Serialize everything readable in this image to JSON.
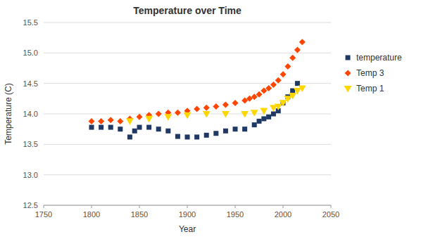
{
  "chart_data": {
    "type": "scatter",
    "title": "Temperature over Time",
    "x_label": "Year",
    "y_label": "Temperature (C)",
    "xlim": [
      1750,
      2050
    ],
    "ylim": [
      12.5,
      15.5
    ],
    "xticks": [
      1750,
      1800,
      1850,
      1900,
      1950,
      2000,
      2050
    ],
    "yticks": [
      12.5,
      {
        "value": 13.0,
        "label": "13.0"
      },
      13.5,
      {
        "value": 14.0,
        "label": "14.0"
      },
      14.5,
      {
        "value": 15.0,
        "label": "15.0"
      },
      15.5
    ],
    "grid": true,
    "legend": "right",
    "series": [
      {
        "name": "temperature",
        "color": "#1F3864",
        "marker": "square",
        "x": [
          1800,
          1810,
          1820,
          1830,
          1840,
          1845,
          1850,
          1860,
          1870,
          1880,
          1890,
          1900,
          1910,
          1920,
          1930,
          1940,
          1950,
          1960,
          1970,
          1975,
          1980,
          1985,
          1990,
          1995,
          2000,
          2005,
          2010,
          2015
        ],
        "values": [
          13.78,
          13.78,
          13.78,
          13.75,
          13.62,
          13.72,
          13.78,
          13.78,
          13.75,
          13.72,
          13.63,
          13.62,
          13.62,
          13.65,
          13.68,
          13.72,
          13.75,
          13.75,
          13.82,
          13.88,
          13.92,
          13.95,
          14.0,
          14.05,
          14.18,
          14.28,
          14.38,
          14.5
        ]
      },
      {
        "name": "Temp 3",
        "color": "#FF4500",
        "marker": "diamond",
        "x": [
          1800,
          1810,
          1820,
          1830,
          1840,
          1850,
          1860,
          1870,
          1880,
          1890,
          1900,
          1910,
          1920,
          1930,
          1940,
          1950,
          1960,
          1965,
          1970,
          1975,
          1980,
          1985,
          1990,
          1995,
          2000,
          2005,
          2010,
          2015,
          2020
        ],
        "values": [
          13.88,
          13.88,
          13.9,
          13.88,
          13.92,
          13.95,
          13.98,
          14.0,
          14.02,
          14.02,
          14.05,
          14.08,
          14.1,
          14.12,
          14.15,
          14.18,
          14.22,
          14.25,
          14.28,
          14.32,
          14.38,
          14.42,
          14.48,
          14.55,
          14.65,
          14.78,
          14.92,
          15.05,
          15.18
        ]
      },
      {
        "name": "Temp 1",
        "color": "#FFD700",
        "marker": "triangle-down",
        "x": [
          1840,
          1860,
          1880,
          1900,
          1920,
          1940,
          1960,
          1970,
          1980,
          1990,
          1995,
          2000,
          2005,
          2010,
          2015,
          2020
        ],
        "values": [
          13.88,
          13.92,
          13.95,
          13.98,
          14.0,
          14.0,
          14.0,
          14.02,
          14.05,
          14.1,
          14.12,
          14.18,
          14.25,
          14.3,
          14.38,
          14.42
        ]
      }
    ]
  }
}
